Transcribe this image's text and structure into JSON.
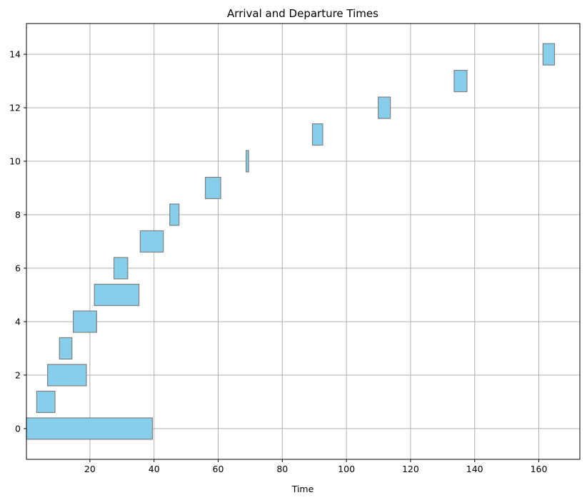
{
  "chart_data": {
    "type": "bar",
    "orientation": "horizontal",
    "title": "Arrival and Departure Times",
    "xlabel": "Time",
    "ylabel": "",
    "xlim": [
      0.2,
      172.8
    ],
    "ylim": [
      -1.15,
      15.15
    ],
    "xticks": [
      20,
      40,
      60,
      80,
      100,
      120,
      140,
      160
    ],
    "yticks": [
      0,
      2,
      4,
      6,
      8,
      10,
      12,
      14
    ],
    "grid": true,
    "bar_color": "#87ceeb",
    "edge_color": "#808080",
    "bars": [
      {
        "y": 0,
        "start": 0.2,
        "end": 39.5
      },
      {
        "y": 1,
        "start": 3.4,
        "end": 9.1
      },
      {
        "y": 2,
        "start": 6.8,
        "end": 18.9
      },
      {
        "y": 3,
        "start": 10.5,
        "end": 14.4
      },
      {
        "y": 4,
        "start": 14.8,
        "end": 22.1
      },
      {
        "y": 5,
        "start": 21.4,
        "end": 35.3
      },
      {
        "y": 6,
        "start": 27.5,
        "end": 31.8
      },
      {
        "y": 7,
        "start": 35.7,
        "end": 42.9
      },
      {
        "y": 8,
        "start": 44.9,
        "end": 47.8
      },
      {
        "y": 9,
        "start": 56.0,
        "end": 60.8
      },
      {
        "y": 10,
        "start": 68.7,
        "end": 69.5
      },
      {
        "y": 11,
        "start": 89.4,
        "end": 92.6
      },
      {
        "y": 12,
        "start": 109.9,
        "end": 113.7
      },
      {
        "y": 13,
        "start": 133.6,
        "end": 137.6
      },
      {
        "y": 14,
        "start": 161.3,
        "end": 164.9
      }
    ]
  }
}
